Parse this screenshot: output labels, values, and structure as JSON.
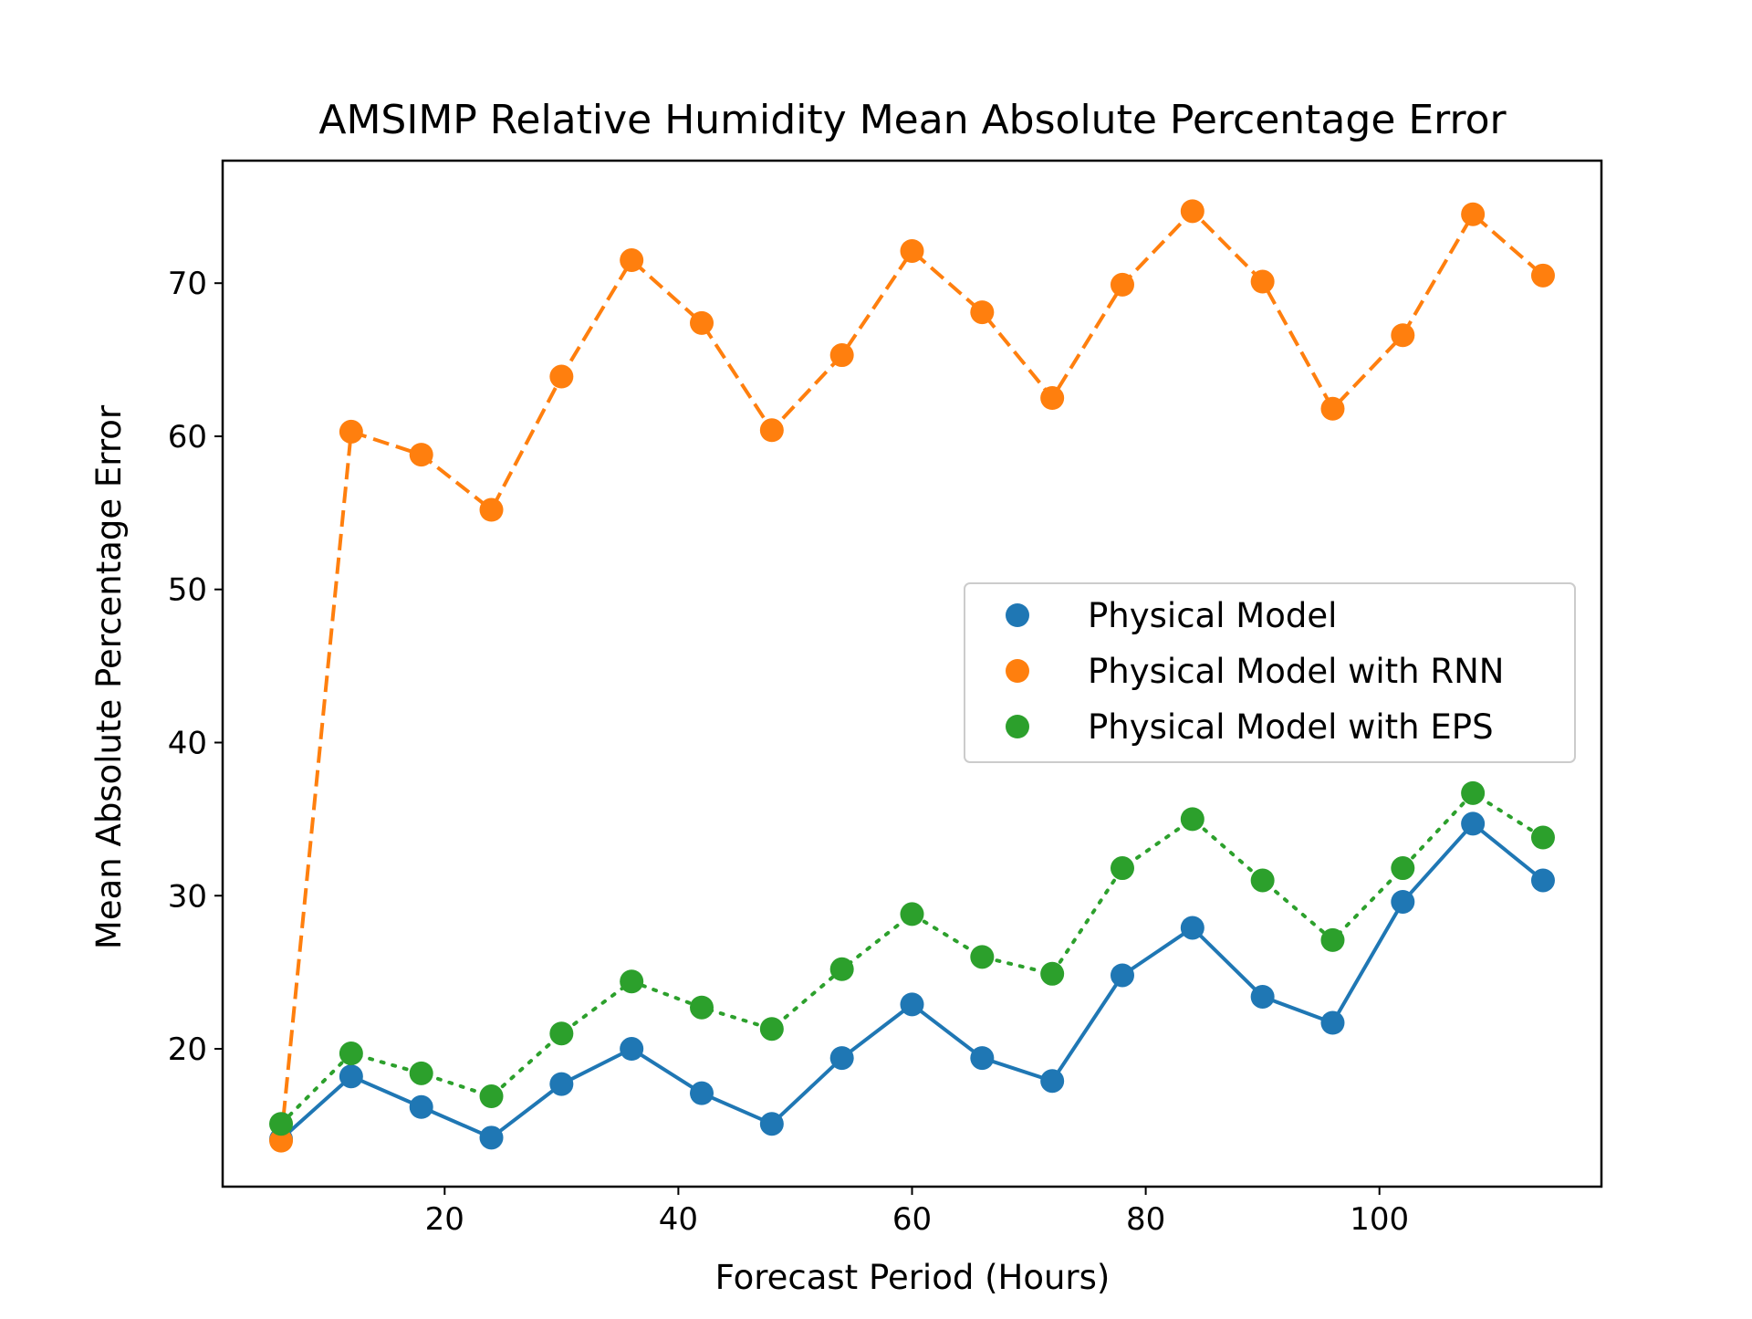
{
  "chart_data": {
    "type": "line",
    "title": "AMSIMP Relative Humidity Mean Absolute Percentage Error",
    "xlabel": "Forecast Period (Hours)",
    "ylabel": "Mean Absolute Percentage Error",
    "xlim": [
      1,
      119
    ],
    "ylim": [
      11,
      78
    ],
    "xticks": [
      20,
      40,
      60,
      80,
      100
    ],
    "yticks": [
      20,
      30,
      40,
      50,
      60,
      70
    ],
    "grid": false,
    "legend_position": "center-right",
    "x": [
      6,
      12,
      18,
      24,
      30,
      36,
      42,
      48,
      54,
      60,
      66,
      72,
      78,
      84,
      90,
      96,
      102,
      108,
      114
    ],
    "series": [
      {
        "name": "Physical Model",
        "color": "#1f77b4",
        "line_style": "solid",
        "values": [
          14.1,
          18.2,
          16.2,
          14.2,
          17.7,
          20.0,
          17.1,
          15.1,
          19.4,
          22.9,
          19.4,
          17.9,
          24.8,
          27.9,
          23.4,
          21.7,
          29.6,
          34.7,
          31.0
        ]
      },
      {
        "name": "Physical Model with RNN",
        "color": "#ff7f0e",
        "line_style": "dashed",
        "values": [
          14.0,
          60.3,
          58.8,
          55.2,
          63.9,
          71.5,
          67.4,
          60.4,
          65.3,
          72.1,
          68.1,
          62.5,
          69.9,
          74.7,
          70.1,
          61.8,
          66.6,
          74.5,
          70.5
        ]
      },
      {
        "name": "Physical Model with EPS",
        "color": "#2ca02c",
        "line_style": "dotted",
        "values": [
          15.1,
          19.7,
          18.4,
          16.9,
          21.0,
          24.4,
          22.7,
          21.3,
          25.2,
          28.8,
          26.0,
          24.9,
          31.8,
          35.0,
          31.0,
          27.1,
          31.8,
          36.7,
          33.8
        ]
      }
    ]
  }
}
